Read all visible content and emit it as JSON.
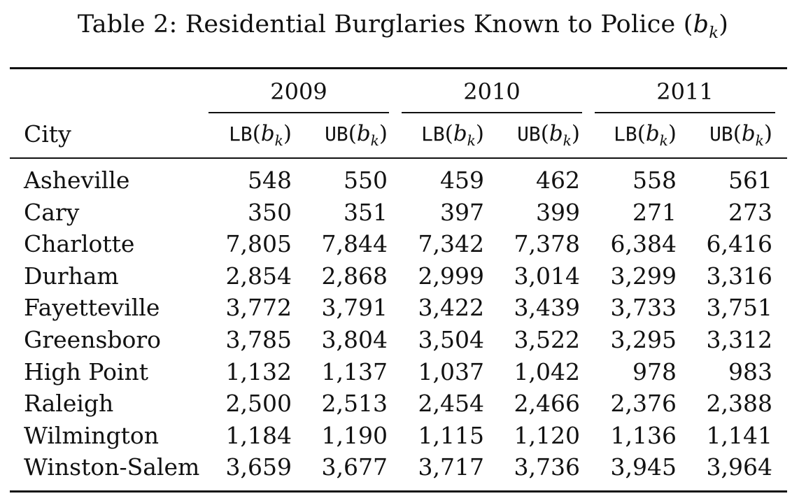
{
  "caption": {
    "prefix": "Table 2: Residential Burglaries Known to Police (",
    "var": "b",
    "sub": "k",
    "suffix": ")"
  },
  "years": [
    "2009",
    "2010",
    "2011"
  ],
  "header": {
    "city": "City",
    "lb": "LB",
    "ub": "UB",
    "var": "b",
    "sub": "k"
  },
  "rows": [
    {
      "city": "Asheville",
      "values": [
        "548",
        "550",
        "459",
        "462",
        "558",
        "561"
      ]
    },
    {
      "city": "Cary",
      "values": [
        "350",
        "351",
        "397",
        "399",
        "271",
        "273"
      ]
    },
    {
      "city": "Charlotte",
      "values": [
        "7,805",
        "7,844",
        "7,342",
        "7,378",
        "6,384",
        "6,416"
      ]
    },
    {
      "city": "Durham",
      "values": [
        "2,854",
        "2,868",
        "2,999",
        "3,014",
        "3,299",
        "3,316"
      ]
    },
    {
      "city": "Fayetteville",
      "values": [
        "3,772",
        "3,791",
        "3,422",
        "3,439",
        "3,733",
        "3,751"
      ]
    },
    {
      "city": "Greensboro",
      "values": [
        "3,785",
        "3,804",
        "3,504",
        "3,522",
        "3,295",
        "3,312"
      ]
    },
    {
      "city": "High Point",
      "values": [
        "1,132",
        "1,137",
        "1,037",
        "1,042",
        "978",
        "983"
      ]
    },
    {
      "city": "Raleigh",
      "values": [
        "2,500",
        "2,513",
        "2,454",
        "2,466",
        "2,376",
        "2,388"
      ]
    },
    {
      "city": "Wilmington",
      "values": [
        "1,184",
        "1,190",
        "1,115",
        "1,120",
        "1,136",
        "1,141"
      ]
    },
    {
      "city": "Winston-Salem",
      "values": [
        "3,659",
        "3,677",
        "3,717",
        "3,736",
        "3,945",
        "3,964"
      ]
    }
  ]
}
